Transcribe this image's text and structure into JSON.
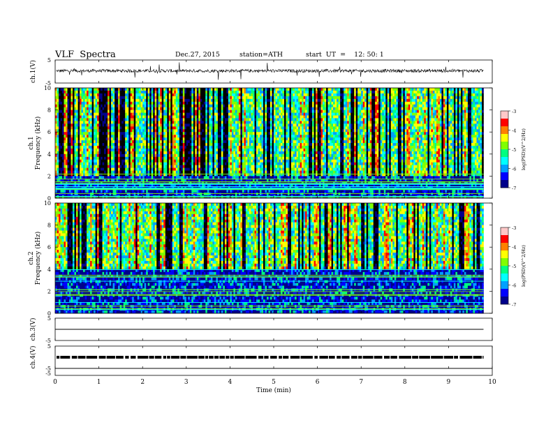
{
  "header": {
    "title": "VLF  Spectra",
    "date": "Dec.27, 2015",
    "station": "station=ATH",
    "start": "start  UT  =    12: 50: 1"
  },
  "colors": {
    "spectrum": [
      "#000000",
      "#00008b",
      "#0000ff",
      "#00a0ff",
      "#00ffff",
      "#00ff80",
      "#80ff00",
      "#ffff00",
      "#ff8000",
      "#ff0000",
      "#ffc8c8"
    ],
    "waveform": "#000000"
  },
  "chart_data": [
    {
      "type": "line",
      "panel": "ch1-waveform",
      "ylabel": "ch.1(V)",
      "ylim": [
        -5,
        5
      ],
      "yticks": [
        "5",
        "-5"
      ],
      "description_values": {
        "baseline": 0,
        "typical_amplitude": 1,
        "max_spike": 4
      }
    },
    {
      "type": "heatmap",
      "panel": "ch1-spectrogram",
      "ylabel": "Frequency  (kHz)",
      "channel_label": "ch.1",
      "ylim": [
        0,
        10
      ],
      "yticks": [
        "0",
        "2",
        "4",
        "6",
        "8",
        "10"
      ],
      "xlim": [
        0,
        10
      ],
      "colorbar": {
        "label": "log(PSD)(V^2/Hz)",
        "range": [
          -7,
          -3
        ],
        "ticks": [
          "-3",
          "-4",
          "-5",
          "-6",
          "-7"
        ]
      },
      "background_band_khz": [
        0,
        2
      ],
      "data_end_min": 9.8
    },
    {
      "type": "heatmap",
      "panel": "ch2-spectrogram",
      "ylabel": "Frequency  (kHz)",
      "channel_label": "ch.2",
      "ylim": [
        0,
        10
      ],
      "yticks": [
        "0",
        "2",
        "4",
        "6",
        "8",
        "10"
      ],
      "xlim": [
        0,
        10
      ],
      "colorbar": {
        "label": "log(PSD)(V^2/Hz)",
        "range": [
          -7,
          -3
        ],
        "ticks": [
          "-3",
          "-4",
          "-5",
          "-6",
          "-7"
        ]
      },
      "background_band_khz": [
        0,
        4
      ],
      "data_end_min": 9.8
    },
    {
      "type": "line",
      "panel": "ch3-waveform",
      "ylabel": "ch.3(V)",
      "ylim": [
        -5,
        5
      ],
      "yticks": [
        "5",
        "-5"
      ],
      "description_values": {
        "baseline": 0
      }
    },
    {
      "type": "line",
      "panel": "ch4-waveform",
      "ylabel": "ch.4(V)",
      "ylim": [
        -5,
        5
      ],
      "yticks": [
        "5",
        "-5"
      ],
      "description_values": {
        "baseline": 0
      }
    }
  ],
  "x_axis": {
    "label": "Time  (min)",
    "ticks": [
      "0",
      "1",
      "2",
      "3",
      "4",
      "5",
      "6",
      "7",
      "8",
      "9",
      "10"
    ],
    "range": [
      0,
      10
    ]
  }
}
